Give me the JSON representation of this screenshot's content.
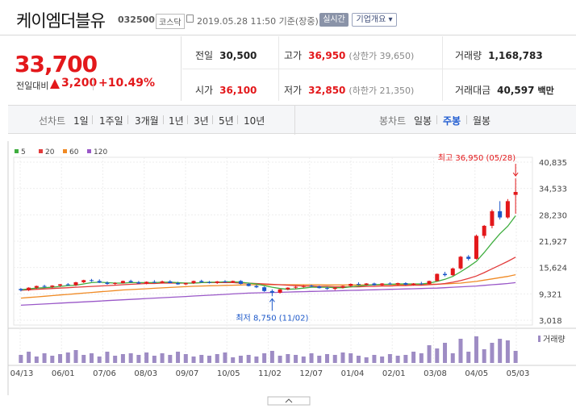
{
  "header": {
    "stock_name": "케이엠더블유",
    "code": "032500",
    "market": "코스닥",
    "datetime": "2019.05.28 11:50  기준(장중)",
    "realtime_label": "실시간",
    "company_label": "기업개요 ▾"
  },
  "price": {
    "current": "33,700",
    "change_label": "전일대비",
    "change": "3,200",
    "change_pct": "+10.49%"
  },
  "stats": {
    "prev_label": "전일",
    "prev": "30,500",
    "high_label": "고가",
    "high": "36,950",
    "high_sub": "(상한가 39,650)",
    "volume_label": "거래량",
    "volume": "1,168,783",
    "open_label": "시가",
    "open": "36,100",
    "low_label": "저가",
    "low": "32,850",
    "low_sub": "(하한가 21,350)",
    "amount_label": "거래대금",
    "amount": "40,597",
    "amount_unit": "백만"
  },
  "tabs": {
    "line_label": "선차트",
    "line": [
      "1일",
      "1주일",
      "3개월",
      "1년",
      "3년",
      "5년",
      "10년"
    ],
    "candle_label": "봉차트",
    "candle": [
      "일봉",
      "주봉",
      "월봉"
    ],
    "candle_active": 1
  },
  "chart_data": {
    "type": "candlestick",
    "legend": [
      {
        "name": "5",
        "color": "#3fae3f"
      },
      {
        "name": "20",
        "color": "#e23b3b"
      },
      {
        "name": "60",
        "color": "#f08a24"
      },
      {
        "name": "120",
        "color": "#9a58c8"
      }
    ],
    "y_ticks": [
      "40,835",
      "34,533",
      "28,230",
      "21,927",
      "15,624",
      "9,321",
      "3,018"
    ],
    "x_ticks": [
      "04/13",
      "06/01",
      "07/06",
      "08/03",
      "09/07",
      "10/05",
      "11/02",
      "12/07",
      "01/04",
      "02/01",
      "03/08",
      "04/05",
      "05/03"
    ],
    "high_label": "최고 36,950 (05/28)",
    "low_label": "최저 8,750 (11/02)",
    "volume_label": "거래량",
    "candles": [
      [
        10500,
        10700,
        9900,
        10200
      ],
      [
        10200,
        10900,
        10000,
        10800
      ],
      [
        10800,
        11300,
        10500,
        11200
      ],
      [
        11200,
        11500,
        10800,
        11000
      ],
      [
        11000,
        11400,
        10700,
        11300
      ],
      [
        11300,
        11700,
        11000,
        11600
      ],
      [
        11600,
        11900,
        11300,
        11400
      ],
      [
        11400,
        12200,
        11200,
        12100
      ],
      [
        12100,
        12700,
        11900,
        12600
      ],
      [
        12600,
        12900,
        12200,
        12400
      ],
      [
        12400,
        12800,
        11900,
        12000
      ],
      [
        12000,
        12300,
        11500,
        11700
      ],
      [
        11700,
        12100,
        11400,
        11900
      ],
      [
        11900,
        12500,
        11800,
        12400
      ],
      [
        12400,
        12700,
        12000,
        12100
      ],
      [
        12100,
        12400,
        11700,
        11800
      ],
      [
        11800,
        12300,
        11600,
        12200
      ],
      [
        12200,
        12600,
        11900,
        12000
      ],
      [
        12000,
        12500,
        11800,
        12300
      ],
      [
        12300,
        12600,
        11900,
        11900
      ],
      [
        11900,
        12200,
        11500,
        11600
      ],
      [
        11600,
        12000,
        11400,
        11900
      ],
      [
        11900,
        12500,
        11700,
        12400
      ],
      [
        12400,
        12700,
        12000,
        12100
      ],
      [
        12100,
        12400,
        11800,
        12000
      ],
      [
        12000,
        12400,
        11700,
        12300
      ],
      [
        12300,
        12600,
        12000,
        12100
      ],
      [
        12100,
        12500,
        11900,
        12400
      ],
      [
        12400,
        12600,
        11600,
        11700
      ],
      [
        11700,
        11900,
        11100,
        11200
      ],
      [
        11200,
        11500,
        10700,
        10900
      ],
      [
        10900,
        11100,
        9800,
        10000
      ],
      [
        10000,
        10400,
        8750,
        9600
      ],
      [
        9600,
        10500,
        9400,
        10400
      ],
      [
        10400,
        10900,
        10200,
        10800
      ],
      [
        10800,
        11200,
        10500,
        11000
      ],
      [
        11000,
        11400,
        10800,
        11300
      ],
      [
        11300,
        11500,
        10900,
        11100
      ],
      [
        11100,
        11300,
        10600,
        10700
      ],
      [
        10700,
        11000,
        10300,
        10500
      ],
      [
        10500,
        10900,
        10200,
        10800
      ],
      [
        10800,
        11300,
        10600,
        11200
      ],
      [
        11200,
        11800,
        11000,
        11700
      ],
      [
        11700,
        12100,
        11400,
        11500
      ],
      [
        11500,
        11900,
        11300,
        11800
      ],
      [
        11800,
        12000,
        11300,
        11400
      ],
      [
        11400,
        11900,
        11200,
        11800
      ],
      [
        11800,
        12100,
        11500,
        11600
      ],
      [
        11600,
        12000,
        11300,
        11900
      ],
      [
        11900,
        12100,
        11400,
        11500
      ],
      [
        11500,
        11900,
        11300,
        11800
      ],
      [
        11800,
        12200,
        11500,
        11700
      ],
      [
        11700,
        12500,
        11600,
        12400
      ],
      [
        12400,
        14200,
        12300,
        14100
      ],
      [
        14100,
        14600,
        13500,
        13800
      ],
      [
        13800,
        15600,
        13600,
        15400
      ],
      [
        15400,
        18400,
        15100,
        18200
      ],
      [
        18200,
        18600,
        17300,
        17700
      ],
      [
        17700,
        23500,
        17500,
        23200
      ],
      [
        23200,
        25800,
        22600,
        25600
      ],
      [
        25600,
        29500,
        25000,
        29100
      ],
      [
        29100,
        31500,
        27100,
        27600
      ],
      [
        27600,
        32000,
        27300,
        31500
      ],
      [
        33000,
        36950,
        28500,
        33700
      ]
    ],
    "volume": [
      10,
      14,
      8,
      12,
      9,
      11,
      13,
      16,
      10,
      12,
      8,
      14,
      9,
      11,
      12,
      10,
      13,
      9,
      12,
      10,
      14,
      11,
      8,
      10,
      9,
      11,
      13,
      7,
      9,
      10,
      8,
      12,
      15,
      9,
      11,
      10,
      8,
      12,
      9,
      11,
      10,
      13,
      12,
      9,
      7,
      10,
      8,
      11,
      9,
      10,
      14,
      12,
      22,
      18,
      25,
      12,
      30,
      14,
      33,
      17,
      25,
      30,
      28,
      15
    ],
    "ma5": [
      10300,
      10500,
      10700,
      10800,
      10900,
      11100,
      11300,
      11400,
      11700,
      12000,
      12100,
      12000,
      11900,
      11900,
      12000,
      12000,
      12000,
      12000,
      12100,
      12100,
      12000,
      11900,
      11900,
      12000,
      12100,
      12100,
      12200,
      12200,
      12100,
      11900,
      11700,
      11300,
      10900,
      10600,
      10400,
      10500,
      10700,
      10900,
      10900,
      10900,
      10800,
      10800,
      11000,
      11200,
      11400,
      11500,
      11600,
      11600,
      11700,
      11700,
      11700,
      11700,
      11900,
      12300,
      12800,
      13500,
      14600,
      15800,
      17100,
      19200,
      21500,
      23700,
      25500,
      28000
    ],
    "ma20": [
      10200,
      10300,
      10400,
      10500,
      10600,
      10700,
      10800,
      10900,
      11000,
      11100,
      11200,
      11300,
      11400,
      11500,
      11600,
      11700,
      11800,
      11800,
      11900,
      11900,
      11900,
      11900,
      11900,
      12000,
      12000,
      12000,
      12000,
      12000,
      11900,
      11900,
      11800,
      11700,
      11600,
      11500,
      11400,
      11300,
      11200,
      11200,
      11100,
      11100,
      11000,
      11000,
      11000,
      11000,
      11100,
      11100,
      11200,
      11200,
      11300,
      11300,
      11400,
      11400,
      11500,
      11600,
      11800,
      12100,
      12500,
      13000,
      13600,
      14400,
      15300,
      16200,
      17100,
      18100
    ],
    "ma60": [
      8300,
      8450,
      8600,
      8750,
      8900,
      9050,
      9200,
      9350,
      9500,
      9650,
      9800,
      9950,
      10100,
      10250,
      10350,
      10450,
      10550,
      10650,
      10750,
      10850,
      10950,
      11050,
      11150,
      11200,
      11250,
      11300,
      11350,
      11400,
      11450,
      11500,
      11500,
      11500,
      11500,
      11500,
      11500,
      11500,
      11500,
      11500,
      11500,
      11450,
      11450,
      11450,
      11450,
      11450,
      11450,
      11450,
      11500,
      11500,
      11500,
      11500,
      11550,
      11550,
      11600,
      11650,
      11700,
      11800,
      11900,
      12100,
      12300,
      12600,
      12900,
      13200,
      13500,
      13900
    ],
    "ma120": [
      6600,
      6700,
      6800,
      6900,
      7000,
      7100,
      7200,
      7300,
      7400,
      7500,
      7600,
      7700,
      7800,
      7900,
      8000,
      8100,
      8200,
      8300,
      8400,
      8500,
      8600,
      8700,
      8800,
      8900,
      9000,
      9100,
      9200,
      9300,
      9400,
      9500,
      9550,
      9600,
      9650,
      9700,
      9750,
      9800,
      9850,
      9900,
      9950,
      10000,
      10050,
      10100,
      10150,
      10200,
      10250,
      10300,
      10350,
      10400,
      10450,
      10500,
      10550,
      10600,
      10650,
      10700,
      10800,
      10900,
      11000,
      11100,
      11200,
      11350,
      11500,
      11650,
      11800,
      12000
    ]
  }
}
